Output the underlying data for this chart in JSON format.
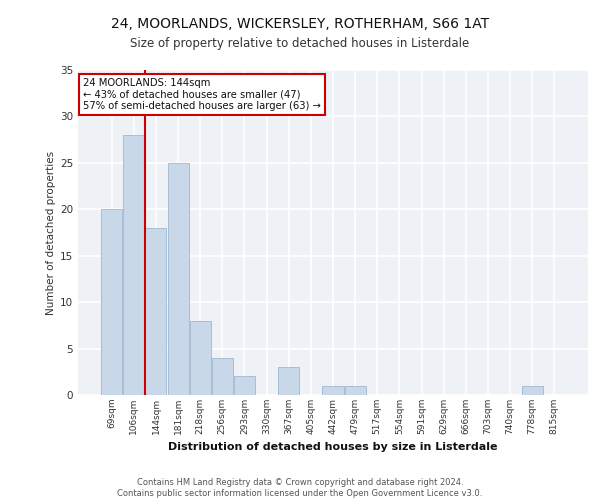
{
  "title1": "24, MOORLANDS, WICKERSLEY, ROTHERHAM, S66 1AT",
  "title2": "Size of property relative to detached houses in Listerdale",
  "xlabel": "Distribution of detached houses by size in Listerdale",
  "ylabel": "Number of detached properties",
  "categories": [
    "69sqm",
    "106sqm",
    "144sqm",
    "181sqm",
    "218sqm",
    "256sqm",
    "293sqm",
    "330sqm",
    "367sqm",
    "405sqm",
    "442sqm",
    "479sqm",
    "517sqm",
    "554sqm",
    "591sqm",
    "629sqm",
    "666sqm",
    "703sqm",
    "740sqm",
    "778sqm",
    "815sqm"
  ],
  "values": [
    20,
    28,
    18,
    25,
    8,
    4,
    2,
    0,
    3,
    0,
    1,
    1,
    0,
    0,
    0,
    0,
    0,
    0,
    0,
    1,
    0
  ],
  "bar_color": "#c8d8e8",
  "bar_edge_color": "#a0b8d0",
  "highlight_line_idx": 2,
  "highlight_line_color": "#cc0000",
  "annotation_text": "24 MOORLANDS: 144sqm\n← 43% of detached houses are smaller (47)\n57% of semi-detached houses are larger (63) →",
  "annotation_box_color": "#ffffff",
  "annotation_box_edge_color": "#cc0000",
  "bg_color": "#eef2f7",
  "grid_color": "#ffffff",
  "footer_text": "Contains HM Land Registry data © Crown copyright and database right 2024.\nContains public sector information licensed under the Open Government Licence v3.0.",
  "ylim": [
    0,
    35
  ],
  "yticks": [
    0,
    5,
    10,
    15,
    20,
    25,
    30,
    35
  ]
}
